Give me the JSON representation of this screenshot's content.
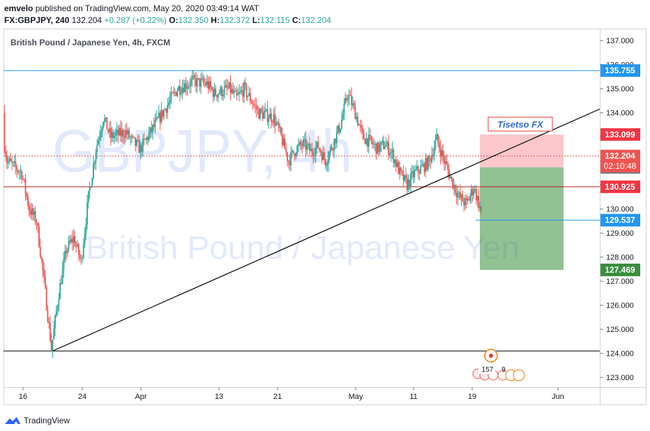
{
  "header": {
    "author": "emvelo",
    "published_text": "published on TradingView.com, May 20, 2020 03:49:14 WAT",
    "symbol": "FX:GBPJPY, 240",
    "last": "132.204",
    "change": "+0.287 (+0.22%)",
    "o_label": "O:",
    "o": "132.350",
    "h_label": "H:",
    "h": "132.372",
    "l_label": "L:",
    "l": "132.115",
    "c_label": "C:",
    "c": "132.204"
  },
  "chart_title": "British Pound / Japanese Yen, 4h, FXCM",
  "watermark": {
    "symbol": "GBPJPY, 4h",
    "name": "British Pound / Japanese Yen"
  },
  "annotation_text": "Tisetso FX",
  "countdown": "02:10:48",
  "events": {
    "count": "157",
    "extra": "9"
  },
  "footer": {
    "brand": "TradingView"
  },
  "colors": {
    "up": "#26a69a",
    "down": "#ef5350",
    "blue": "#2196f3",
    "stop": "#f23645",
    "target": "#388e3c"
  },
  "chart_data": {
    "type": "candlestick",
    "title": "British Pound / Japanese Yen, 4h, FXCM",
    "ylim": [
      122.6,
      137.5
    ],
    "y_ticks": [
      "123.000",
      "124.000",
      "125.000",
      "126.000",
      "127.000",
      "128.000",
      "129.000",
      "130.000",
      "131.000",
      "132.000",
      "133.000",
      "134.000",
      "135.000",
      "136.000",
      "137.000"
    ],
    "x_ticks": [
      "16",
      "24",
      "Apr",
      "13",
      "21",
      "May",
      "11",
      "19",
      "Jun"
    ],
    "price_path": [
      [
        "Mar 13",
        134.0
      ],
      [
        "Mar 14",
        132.0
      ],
      [
        "Mar 16",
        131.5
      ],
      [
        "Mar 17",
        130.0
      ],
      [
        "Mar 18",
        129.5
      ],
      [
        "Mar 19",
        127.0
      ],
      [
        "Mar 20",
        124.2
      ],
      [
        "Mar 21",
        126.5
      ],
      [
        "Mar 22",
        128.3
      ],
      [
        "Mar 23",
        128.8
      ],
      [
        "Mar 24",
        127.8
      ],
      [
        "Mar 25",
        130.5
      ],
      [
        "Mar 26",
        132.5
      ],
      [
        "Mar 27",
        133.8
      ],
      [
        "Mar 28",
        133.0
      ],
      [
        "Mar 30",
        133.2
      ],
      [
        "Mar 31",
        132.8
      ],
      [
        "Apr 1",
        132.5
      ],
      [
        "Apr 2",
        133.0
      ],
      [
        "Apr 3",
        133.5
      ],
      [
        "Apr 4",
        134.0
      ],
      [
        "Apr 6",
        135.0
      ],
      [
        "Apr 8",
        135.3
      ],
      [
        "Apr 10",
        135.2
      ],
      [
        "Apr 11",
        134.8
      ],
      [
        "Apr 13",
        135.0
      ],
      [
        "Apr 14",
        134.6
      ],
      [
        "Apr 15",
        135.0
      ],
      [
        "Apr 16",
        134.5
      ],
      [
        "Apr 17",
        134.0
      ],
      [
        "Apr 19",
        133.8
      ],
      [
        "Apr 20",
        133.0
      ],
      [
        "Apr 21",
        132.0
      ],
      [
        "Apr 22",
        132.5
      ],
      [
        "Apr 23",
        132.7
      ],
      [
        "Apr 24",
        132.4
      ],
      [
        "Apr 25",
        132.6
      ],
      [
        "Apr 26",
        132.0
      ],
      [
        "Apr 27",
        132.7
      ],
      [
        "Apr 28",
        133.5
      ],
      [
        "Apr 29",
        134.8
      ],
      [
        "Apr 30",
        134.0
      ],
      [
        "May 1",
        133.0
      ],
      [
        "May 2",
        132.8
      ],
      [
        "May 3",
        132.5
      ],
      [
        "May 4",
        132.7
      ],
      [
        "May 5",
        132.3
      ],
      [
        "May 6",
        131.5
      ],
      [
        "May 7",
        131.0
      ],
      [
        "May 8",
        131.5
      ],
      [
        "May 9",
        131.7
      ],
      [
        "May 10",
        132.0
      ],
      [
        "May 11",
        132.9
      ],
      [
        "May 12",
        132.0
      ],
      [
        "May 13",
        131.2
      ],
      [
        "May 14",
        130.5
      ],
      [
        "May 15",
        130.2
      ],
      [
        "May 16",
        130.9
      ],
      [
        "May 17",
        129.9
      ],
      [
        "May 18",
        129.4
      ],
      [
        "May 19",
        130.6
      ],
      [
        "May 20",
        132.2
      ]
    ],
    "levels": [
      {
        "label": "135.755",
        "y": 135.755,
        "color": "#2196f3"
      },
      {
        "label": "133.099",
        "y": 133.099,
        "color": "#f23645"
      },
      {
        "label": "132.204",
        "y": 132.204,
        "color": "#ef5350"
      },
      {
        "label": "131.732",
        "y": 131.732,
        "color": "#787b86"
      },
      {
        "label": "130.925",
        "y": 130.925,
        "color": "#f23645"
      },
      {
        "label": "129.537",
        "y": 129.537,
        "color": "#2196f3"
      },
      {
        "label": "127.469",
        "y": 127.469,
        "color": "#388e3c"
      }
    ],
    "horizontal_lines": [
      135.755,
      130.925,
      124.1
    ],
    "trendline": [
      [
        "Mar 20",
        124.1
      ],
      [
        "Jun 4",
        134.45
      ]
    ],
    "position": {
      "entry": 131.732,
      "stop": 133.099,
      "target": 127.469
    }
  }
}
